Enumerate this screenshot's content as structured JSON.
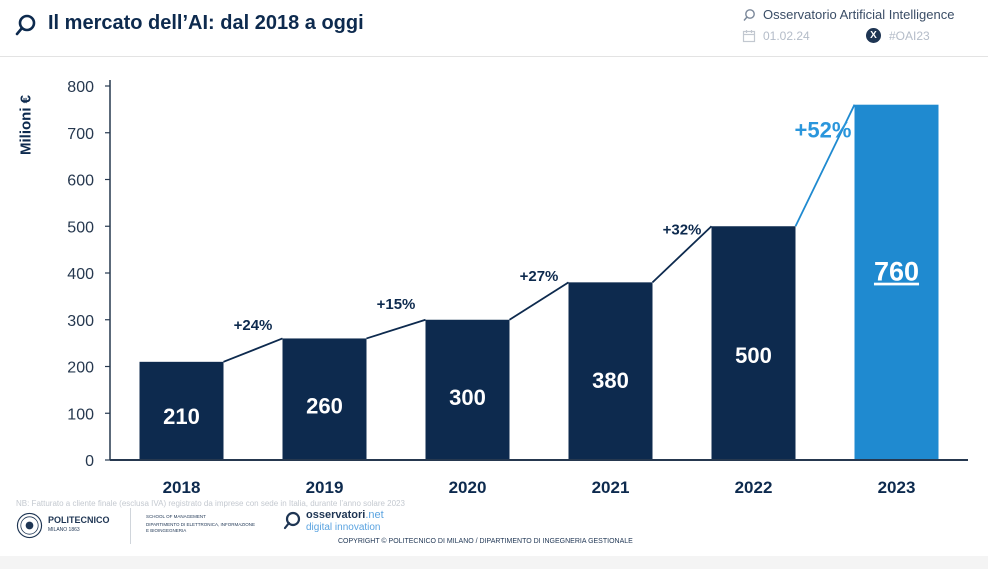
{
  "header": {
    "title": "Il mercato dell’AI: dal 2018 a oggi",
    "brand": "Osservatorio Artificial Intelligence",
    "date": "01.02.24",
    "hashtag": "#OAI23"
  },
  "chart_data": {
    "type": "bar",
    "title": "Il mercato dell’AI: dal 2018 a oggi",
    "xlabel": "",
    "ylabel": "Milioni €",
    "ylim": [
      0,
      800
    ],
    "yticks": [
      0,
      100,
      200,
      300,
      400,
      500,
      600,
      700,
      800
    ],
    "categories": [
      "2018",
      "2019",
      "2020",
      "2021",
      "2022",
      "2023"
    ],
    "values": [
      210,
      260,
      300,
      380,
      500,
      760
    ],
    "growth_labels": [
      "+24%",
      "+15%",
      "+27%",
      "+32%",
      "+52%"
    ],
    "grid": false,
    "highlight_index": 5
  },
  "colors": {
    "bar": "#0d2a4e",
    "highlight": "#1f8ad0",
    "growth_highlight": "#2a96dc",
    "text": "#0d2a4e",
    "axis": "#26384f"
  },
  "footer": {
    "note": "NB: Fatturato a cliente finale (esclusa IVA) registrato da imprese con sede in Italia, durante l’anno solare 2023",
    "politecnico_name": "POLITECNICO",
    "politecnico_sub": "MILANO 1863",
    "school": "SCHOOL OF MANAGEMENT",
    "department": "DIPARTIMENTO DI ELETTRONICA, INFORMAZIONE E BIOINGEGNERIA",
    "osservatori_name": "osservatori",
    "osservatori_suffix": ".net",
    "osservatori_tag": "digital innovation",
    "copyright": "COPYRIGHT © POLITECNICO DI MILANO / DIPARTIMENTO DI INGEGNERIA GESTIONALE"
  }
}
